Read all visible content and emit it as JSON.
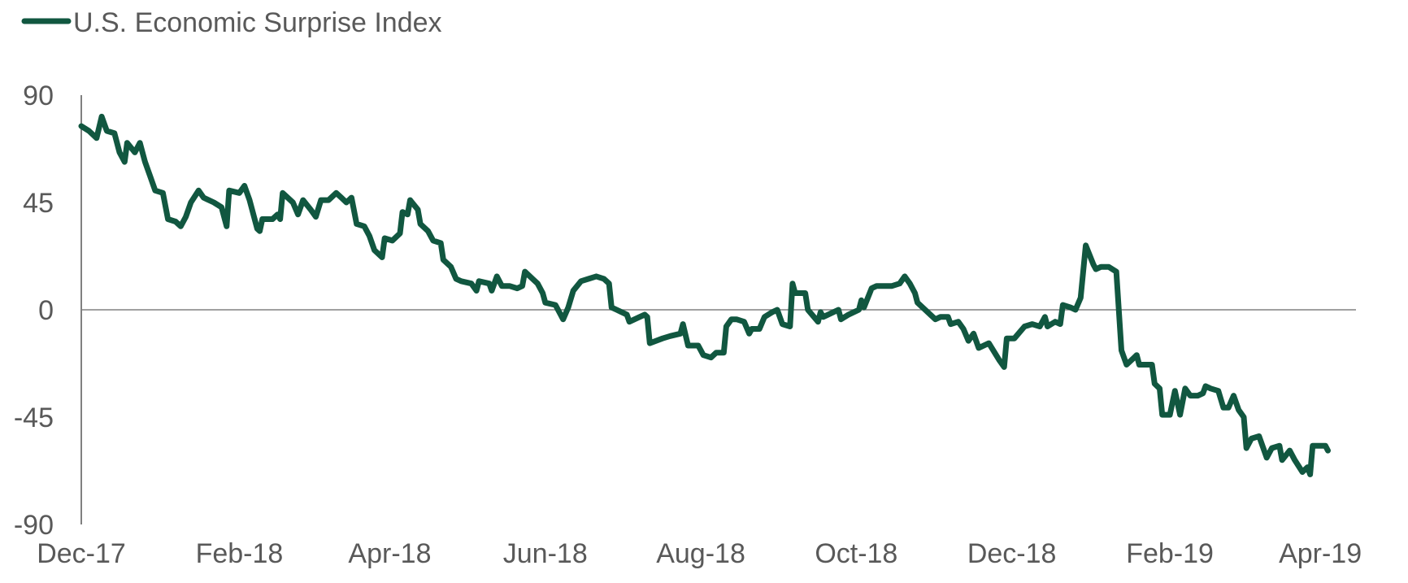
{
  "chart_data": {
    "type": "line",
    "title": "",
    "xlabel": "",
    "ylabel": "",
    "ylim": [
      -90,
      90
    ],
    "yticks": [
      "90",
      "45",
      "0",
      "-45",
      "-90"
    ],
    "ytick_values": [
      90,
      45,
      0,
      -45,
      -90
    ],
    "xticks": [
      "Dec-17",
      "Feb-18",
      "Apr-18",
      "Jun-18",
      "Aug-18",
      "Oct-18",
      "Dec-18",
      "Feb-19",
      "Apr-19"
    ],
    "xtick_dates": [
      "2017-12-01",
      "2018-02-01",
      "2018-04-01",
      "2018-06-01",
      "2018-08-01",
      "2018-10-01",
      "2018-12-01",
      "2019-02-01",
      "2019-04-01"
    ],
    "xlim": [
      "2017-12-01",
      "2019-04-15"
    ],
    "grid": false,
    "legend_position": "top-left",
    "colors": {
      "series": "#115740",
      "axis": "#808080",
      "text": "#595959"
    },
    "series": [
      {
        "name": "U.S. Economic Surprise Index",
        "points": [
          [
            "2017-12-01",
            77
          ],
          [
            "2017-12-04",
            75
          ],
          [
            "2017-12-07",
            72
          ],
          [
            "2017-12-09",
            81
          ],
          [
            "2017-12-11",
            75
          ],
          [
            "2017-12-14",
            74
          ],
          [
            "2017-12-16",
            66
          ],
          [
            "2017-12-18",
            62
          ],
          [
            "2017-12-19",
            70
          ],
          [
            "2017-12-22",
            66
          ],
          [
            "2017-12-24",
            70
          ],
          [
            "2017-12-26",
            62
          ],
          [
            "2017-12-28",
            56
          ],
          [
            "2017-12-30",
            50
          ],
          [
            "2018-01-02",
            49
          ],
          [
            "2018-01-04",
            38
          ],
          [
            "2018-01-07",
            37
          ],
          [
            "2018-01-09",
            35
          ],
          [
            "2018-01-11",
            39
          ],
          [
            "2018-01-13",
            45
          ],
          [
            "2018-01-16",
            50
          ],
          [
            "2018-01-18",
            47
          ],
          [
            "2018-01-22",
            45
          ],
          [
            "2018-01-25",
            43
          ],
          [
            "2018-01-27",
            35
          ],
          [
            "2018-01-28",
            50
          ],
          [
            "2018-02-01",
            49
          ],
          [
            "2018-02-03",
            52
          ],
          [
            "2018-02-05",
            46
          ],
          [
            "2018-02-08",
            34
          ],
          [
            "2018-02-09",
            33
          ],
          [
            "2018-02-10",
            38
          ],
          [
            "2018-02-14",
            38
          ],
          [
            "2018-02-16",
            40
          ],
          [
            "2018-02-17",
            38
          ],
          [
            "2018-02-18",
            49
          ],
          [
            "2018-02-22",
            45
          ],
          [
            "2018-02-24",
            40
          ],
          [
            "2018-02-26",
            46
          ],
          [
            "2018-03-01",
            42
          ],
          [
            "2018-03-03",
            39
          ],
          [
            "2018-03-05",
            46
          ],
          [
            "2018-03-08",
            46
          ],
          [
            "2018-03-11",
            49
          ],
          [
            "2018-03-13",
            47
          ],
          [
            "2018-03-15",
            45
          ],
          [
            "2018-03-17",
            47
          ],
          [
            "2018-03-19",
            36
          ],
          [
            "2018-03-22",
            35
          ],
          [
            "2018-03-24",
            31
          ],
          [
            "2018-03-26",
            25
          ],
          [
            "2018-03-29",
            22
          ],
          [
            "2018-03-30",
            30
          ],
          [
            "2018-04-02",
            29
          ],
          [
            "2018-04-05",
            32
          ],
          [
            "2018-04-06",
            41
          ],
          [
            "2018-04-08",
            40
          ],
          [
            "2018-04-09",
            46
          ],
          [
            "2018-04-12",
            42
          ],
          [
            "2018-04-13",
            36
          ],
          [
            "2018-04-16",
            33
          ],
          [
            "2018-04-18",
            29
          ],
          [
            "2018-04-21",
            28
          ],
          [
            "2018-04-22",
            21
          ],
          [
            "2018-04-25",
            18
          ],
          [
            "2018-04-27",
            13
          ],
          [
            "2018-04-29",
            12
          ],
          [
            "2018-05-03",
            11
          ],
          [
            "2018-05-05",
            8
          ],
          [
            "2018-05-06",
            12
          ],
          [
            "2018-05-10",
            11
          ],
          [
            "2018-05-11",
            8
          ],
          [
            "2018-05-13",
            14
          ],
          [
            "2018-05-15",
            10
          ],
          [
            "2018-05-18",
            10
          ],
          [
            "2018-05-21",
            9
          ],
          [
            "2018-05-23",
            10
          ],
          [
            "2018-05-24",
            16
          ],
          [
            "2018-05-27",
            13
          ],
          [
            "2018-05-29",
            11
          ],
          [
            "2018-05-31",
            7
          ],
          [
            "2018-06-01",
            3
          ],
          [
            "2018-06-05",
            2
          ],
          [
            "2018-06-07",
            -2
          ],
          [
            "2018-06-08",
            -4
          ],
          [
            "2018-06-10",
            1
          ],
          [
            "2018-06-12",
            8
          ],
          [
            "2018-06-15",
            12
          ],
          [
            "2018-06-18",
            13
          ],
          [
            "2018-06-21",
            14
          ],
          [
            "2018-06-24",
            13
          ],
          [
            "2018-06-26",
            11
          ],
          [
            "2018-06-27",
            1
          ],
          [
            "2018-06-29",
            0
          ],
          [
            "2018-07-03",
            -2
          ],
          [
            "2018-07-04",
            -5
          ],
          [
            "2018-07-08",
            -3
          ],
          [
            "2018-07-10",
            -2
          ],
          [
            "2018-07-11",
            -3
          ],
          [
            "2018-07-12",
            -14
          ],
          [
            "2018-07-17",
            -12
          ],
          [
            "2018-07-20",
            -11
          ],
          [
            "2018-07-24",
            -10
          ],
          [
            "2018-07-25",
            -6
          ],
          [
            "2018-07-27",
            -15
          ],
          [
            "2018-07-31",
            -15
          ],
          [
            "2018-08-02",
            -19
          ],
          [
            "2018-08-05",
            -20
          ],
          [
            "2018-08-07",
            -18
          ],
          [
            "2018-08-10",
            -18
          ],
          [
            "2018-08-11",
            -7
          ],
          [
            "2018-08-13",
            -4
          ],
          [
            "2018-08-15",
            -4
          ],
          [
            "2018-08-18",
            -5
          ],
          [
            "2018-08-20",
            -10
          ],
          [
            "2018-08-21",
            -8
          ],
          [
            "2018-08-24",
            -8
          ],
          [
            "2018-08-26",
            -3
          ],
          [
            "2018-08-29",
            -1
          ],
          [
            "2018-08-31",
            0
          ],
          [
            "2018-09-02",
            -6
          ],
          [
            "2018-09-05",
            -7
          ],
          [
            "2018-09-06",
            11
          ],
          [
            "2018-09-07",
            7
          ],
          [
            "2018-09-11",
            7
          ],
          [
            "2018-09-12",
            0
          ],
          [
            "2018-09-16",
            -5
          ],
          [
            "2018-09-17",
            -1
          ],
          [
            "2018-09-18",
            -3
          ],
          [
            "2018-09-24",
            0
          ],
          [
            "2018-09-25",
            -4
          ],
          [
            "2018-09-28",
            -2
          ],
          [
            "2018-10-02",
            0
          ],
          [
            "2018-10-03",
            4
          ],
          [
            "2018-10-04",
            1
          ],
          [
            "2018-10-07",
            9
          ],
          [
            "2018-10-09",
            10
          ],
          [
            "2018-10-15",
            10
          ],
          [
            "2018-10-18",
            11
          ],
          [
            "2018-10-20",
            14
          ],
          [
            "2018-10-22",
            11
          ],
          [
            "2018-10-24",
            7
          ],
          [
            "2018-10-25",
            3
          ],
          [
            "2018-10-29",
            -1
          ],
          [
            "2018-11-01",
            -4
          ],
          [
            "2018-11-03",
            -3
          ],
          [
            "2018-11-06",
            -3
          ],
          [
            "2018-11-07",
            -6
          ],
          [
            "2018-11-10",
            -5
          ],
          [
            "2018-11-12",
            -8
          ],
          [
            "2018-11-14",
            -13
          ],
          [
            "2018-11-16",
            -10
          ],
          [
            "2018-11-18",
            -16
          ],
          [
            "2018-11-22",
            -14
          ],
          [
            "2018-11-26",
            -21
          ],
          [
            "2018-11-28",
            -24
          ],
          [
            "2018-11-29",
            -12
          ],
          [
            "2018-12-02",
            -12
          ],
          [
            "2018-12-06",
            -7
          ],
          [
            "2018-12-09",
            -6
          ],
          [
            "2018-12-12",
            -7
          ],
          [
            "2018-12-14",
            -3
          ],
          [
            "2018-12-15",
            -7
          ],
          [
            "2018-12-18",
            -5
          ],
          [
            "2018-12-20",
            -6
          ],
          [
            "2018-12-21",
            2
          ],
          [
            "2018-12-24",
            1
          ],
          [
            "2018-12-26",
            0
          ],
          [
            "2018-12-28",
            5
          ],
          [
            "2018-12-30",
            27
          ],
          [
            "2019-01-02",
            19
          ],
          [
            "2019-01-03",
            17
          ],
          [
            "2019-01-05",
            18
          ],
          [
            "2019-01-08",
            18
          ],
          [
            "2019-01-11",
            16
          ],
          [
            "2019-01-13",
            -17
          ],
          [
            "2019-01-15",
            -23
          ],
          [
            "2019-01-18",
            -20
          ],
          [
            "2019-01-19",
            -19
          ],
          [
            "2019-01-20",
            -23
          ],
          [
            "2019-01-25",
            -23
          ],
          [
            "2019-01-26",
            -31
          ],
          [
            "2019-01-28",
            -33
          ],
          [
            "2019-01-29",
            -44
          ],
          [
            "2019-02-01",
            -44
          ],
          [
            "2019-02-03",
            -34
          ],
          [
            "2019-02-05",
            -44
          ],
          [
            "2019-02-07",
            -33
          ],
          [
            "2019-02-09",
            -36
          ],
          [
            "2019-02-12",
            -36
          ],
          [
            "2019-02-14",
            -35
          ],
          [
            "2019-02-15",
            -32
          ],
          [
            "2019-02-17",
            -33
          ],
          [
            "2019-02-20",
            -34
          ],
          [
            "2019-02-22",
            -41
          ],
          [
            "2019-02-24",
            -41
          ],
          [
            "2019-02-26",
            -36
          ],
          [
            "2019-02-28",
            -42
          ],
          [
            "2019-03-02",
            -45
          ],
          [
            "2019-03-03",
            -58
          ],
          [
            "2019-03-05",
            -54
          ],
          [
            "2019-03-08",
            -53
          ],
          [
            "2019-03-11",
            -62
          ],
          [
            "2019-03-13",
            -58
          ],
          [
            "2019-03-16",
            -57
          ],
          [
            "2019-03-17",
            -63
          ],
          [
            "2019-03-20",
            -59
          ],
          [
            "2019-03-22",
            -63
          ],
          [
            "2019-03-25",
            -68
          ],
          [
            "2019-03-27",
            -66
          ],
          [
            "2019-03-28",
            -69
          ],
          [
            "2019-03-29",
            -57
          ],
          [
            "2019-04-03",
            -57
          ],
          [
            "2019-04-04",
            -59
          ]
        ]
      }
    ]
  }
}
